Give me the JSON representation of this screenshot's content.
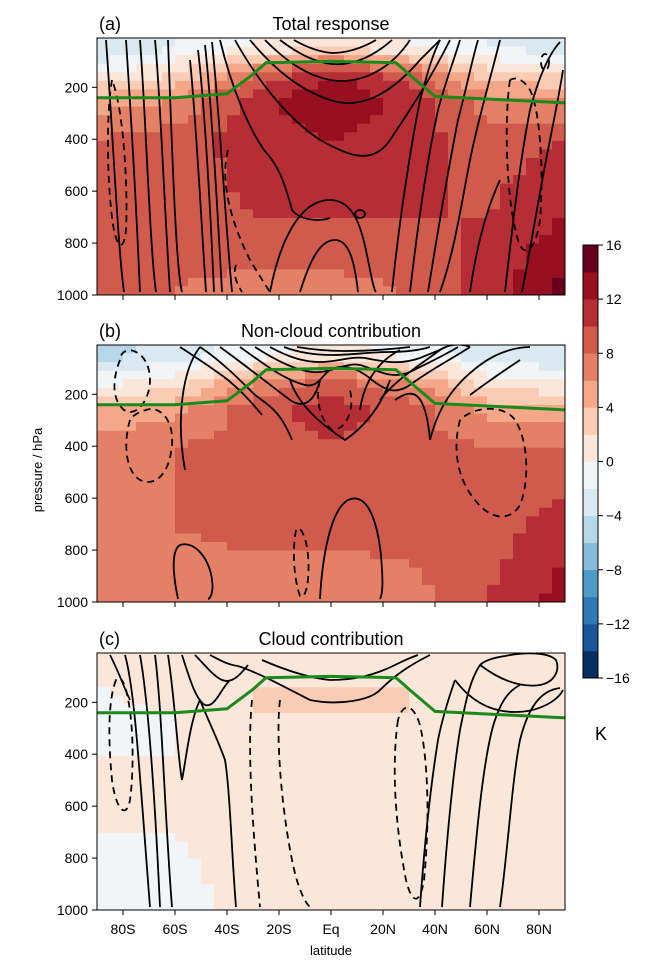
{
  "figure": {
    "ylabel": "pressure / hPa",
    "xlabel": "latitude",
    "colorbar_unit": "K"
  },
  "chart_data": [
    {
      "type": "heatmap",
      "panel_label": "(a)",
      "title": "Total response",
      "xlabel": "latitude",
      "ylabel": "pressure / hPa",
      "x_tick_labels": [
        "80S",
        "60S",
        "40S",
        "20S",
        "Eq",
        "20N",
        "40N",
        "60N",
        "80N"
      ],
      "x_ticks": [
        -80,
        -60,
        -40,
        -20,
        0,
        20,
        40,
        60,
        80
      ],
      "y_tick_labels": [
        "200",
        "400",
        "600",
        "800",
        "1000"
      ],
      "y_ticks": [
        200,
        400,
        600,
        800,
        1000
      ],
      "xlim": [
        -90,
        90
      ],
      "ylim": [
        1000,
        10
      ],
      "tropopause": {
        "lat": [
          -90,
          -60,
          -40,
          -30,
          -25,
          0,
          25,
          30,
          40,
          60,
          90
        ],
        "p": [
          240,
          240,
          225,
          150,
          105,
          100,
          105,
          150,
          235,
          245,
          260
        ],
        "color": "#1a8a1a"
      },
      "field_K": [
        {
          "lat": -90,
          "values": [
            [
              50,
              -4
            ],
            [
              150,
              0
            ],
            [
              250,
              5
            ],
            [
              400,
              8
            ],
            [
              700,
              8
            ],
            [
              1000,
              9
            ]
          ]
        },
        {
          "lat": -60,
          "values": [
            [
              50,
              -2
            ],
            [
              150,
              2
            ],
            [
              250,
              6
            ],
            [
              400,
              9
            ],
            [
              700,
              9
            ],
            [
              1000,
              8
            ]
          ]
        },
        {
          "lat": -30,
          "values": [
            [
              50,
              0
            ],
            [
              150,
              8
            ],
            [
              250,
              11
            ],
            [
              400,
              11
            ],
            [
              700,
              10
            ],
            [
              1000,
              7
            ]
          ]
        },
        {
          "lat": 0,
          "values": [
            [
              50,
              2
            ],
            [
              150,
              12
            ],
            [
              250,
              14
            ],
            [
              400,
              12
            ],
            [
              700,
              10
            ],
            [
              1000,
              7
            ]
          ]
        },
        {
          "lat": 30,
          "values": [
            [
              50,
              0
            ],
            [
              150,
              9
            ],
            [
              250,
              11
            ],
            [
              400,
              11
            ],
            [
              700,
              10
            ],
            [
              1000,
              8
            ]
          ]
        },
        {
          "lat": 60,
          "values": [
            [
              50,
              -2
            ],
            [
              150,
              3
            ],
            [
              250,
              7
            ],
            [
              400,
              9
            ],
            [
              700,
              10
            ],
            [
              1000,
              11
            ]
          ]
        },
        {
          "lat": 90,
          "values": [
            [
              50,
              -3
            ],
            [
              150,
              2
            ],
            [
              250,
              6
            ],
            [
              400,
              10
            ],
            [
              700,
              12
            ],
            [
              1000,
              15
            ]
          ]
        }
      ]
    },
    {
      "type": "heatmap",
      "panel_label": "(b)",
      "title": "Non-cloud contribution",
      "xlabel": "latitude",
      "ylabel": "pressure / hPa",
      "x_tick_labels": [
        "80S",
        "60S",
        "40S",
        "20S",
        "Eq",
        "20N",
        "40N",
        "60N",
        "80N"
      ],
      "x_ticks": [
        -80,
        -60,
        -40,
        -20,
        0,
        20,
        40,
        60,
        80
      ],
      "y_tick_labels": [
        "200",
        "400",
        "600",
        "800",
        "1000"
      ],
      "y_ticks": [
        200,
        400,
        600,
        800,
        1000
      ],
      "xlim": [
        -90,
        90
      ],
      "ylim": [
        1000,
        10
      ],
      "tropopause": {
        "lat": [
          -90,
          -60,
          -40,
          -30,
          -25,
          0,
          25,
          30,
          40,
          60,
          90
        ],
        "p": [
          240,
          240,
          225,
          150,
          105,
          100,
          105,
          150,
          235,
          245,
          260
        ],
        "color": "#1a8a1a"
      },
      "field_K": [
        {
          "lat": -90,
          "values": [
            [
              50,
              -5
            ],
            [
              150,
              -1
            ],
            [
              250,
              4
            ],
            [
              400,
              7
            ],
            [
              700,
              8
            ],
            [
              1000,
              8
            ]
          ]
        },
        {
          "lat": -60,
          "values": [
            [
              50,
              -3
            ],
            [
              150,
              1
            ],
            [
              250,
              5
            ],
            [
              400,
              8
            ],
            [
              700,
              8
            ],
            [
              1000,
              7
            ]
          ]
        },
        {
          "lat": -30,
          "values": [
            [
              50,
              -1
            ],
            [
              150,
              6
            ],
            [
              250,
              9
            ],
            [
              400,
              9
            ],
            [
              700,
              9
            ],
            [
              1000,
              6
            ]
          ]
        },
        {
          "lat": 0,
          "values": [
            [
              50,
              1
            ],
            [
              150,
              9
            ],
            [
              250,
              11
            ],
            [
              400,
              10
            ],
            [
              700,
              9
            ],
            [
              1000,
              6
            ]
          ]
        },
        {
          "lat": 30,
          "values": [
            [
              50,
              -1
            ],
            [
              150,
              6
            ],
            [
              250,
              9
            ],
            [
              400,
              9
            ],
            [
              700,
              9
            ],
            [
              1000,
              7
            ]
          ]
        },
        {
          "lat": 60,
          "values": [
            [
              50,
              -3
            ],
            [
              150,
              1
            ],
            [
              250,
              5
            ],
            [
              400,
              8
            ],
            [
              700,
              9
            ],
            [
              1000,
              10
            ]
          ]
        },
        {
          "lat": 90,
          "values": [
            [
              50,
              -4
            ],
            [
              150,
              0
            ],
            [
              250,
              4
            ],
            [
              400,
              8
            ],
            [
              700,
              11
            ],
            [
              1000,
              13
            ]
          ]
        }
      ]
    },
    {
      "type": "heatmap",
      "panel_label": "(c)",
      "title": "Cloud contribution",
      "xlabel": "latitude",
      "ylabel": "pressure / hPa",
      "x_tick_labels": [
        "80S",
        "60S",
        "40S",
        "20S",
        "Eq",
        "20N",
        "40N",
        "60N",
        "80N"
      ],
      "x_ticks": [
        -80,
        -60,
        -40,
        -20,
        0,
        20,
        40,
        60,
        80
      ],
      "y_tick_labels": [
        "200",
        "400",
        "600",
        "800",
        "1000"
      ],
      "y_ticks": [
        200,
        400,
        600,
        800,
        1000
      ],
      "xlim": [
        -90,
        90
      ],
      "ylim": [
        1000,
        10
      ],
      "tropopause": {
        "lat": [
          -90,
          -60,
          -40,
          -30,
          -25,
          0,
          25,
          30,
          40,
          60,
          90
        ],
        "p": [
          240,
          240,
          225,
          150,
          105,
          100,
          105,
          150,
          235,
          245,
          260
        ],
        "color": "#1a8a1a"
      },
      "field_K": [
        {
          "lat": -90,
          "values": [
            [
              50,
              1
            ],
            [
              150,
              0
            ],
            [
              250,
              -1
            ],
            [
              400,
              0
            ],
            [
              700,
              0
            ],
            [
              1000,
              0
            ]
          ]
        },
        {
          "lat": -60,
          "values": [
            [
              50,
              1
            ],
            [
              150,
              1
            ],
            [
              250,
              0
            ],
            [
              400,
              0
            ],
            [
              700,
              0
            ],
            [
              1000,
              -1
            ]
          ]
        },
        {
          "lat": -30,
          "values": [
            [
              50,
              1
            ],
            [
              150,
              2
            ],
            [
              250,
              2
            ],
            [
              400,
              1
            ],
            [
              700,
              1
            ],
            [
              1000,
              1
            ]
          ]
        },
        {
          "lat": 0,
          "values": [
            [
              50,
              1
            ],
            [
              150,
              2
            ],
            [
              250,
              2
            ],
            [
              400,
              1
            ],
            [
              700,
              1
            ],
            [
              1000,
              1
            ]
          ]
        },
        {
          "lat": 30,
          "values": [
            [
              50,
              1
            ],
            [
              150,
              2
            ],
            [
              250,
              2
            ],
            [
              400,
              1
            ],
            [
              700,
              1
            ],
            [
              1000,
              1
            ]
          ]
        },
        {
          "lat": 60,
          "values": [
            [
              50,
              2
            ],
            [
              150,
              1
            ],
            [
              250,
              1
            ],
            [
              400,
              1
            ],
            [
              700,
              1
            ],
            [
              1000,
              1
            ]
          ]
        },
        {
          "lat": 90,
          "values": [
            [
              50,
              1
            ],
            [
              150,
              1
            ],
            [
              250,
              1
            ],
            [
              400,
              1
            ],
            [
              700,
              1
            ],
            [
              1000,
              2
            ]
          ]
        }
      ]
    }
  ],
  "colorbar": {
    "ticks": [
      "16",
      "12",
      "8",
      "4",
      "0",
      "−4",
      "−8",
      "−12",
      "−16"
    ],
    "range": [
      -16,
      16
    ],
    "step": 2,
    "colors": [
      "#053061",
      "#1a5599",
      "#2f79b5",
      "#4f9bc7",
      "#86bdda",
      "#b6d7e8",
      "#dbeaf2",
      "#f2f5f7",
      "#fbe6da",
      "#fbccb4",
      "#f5a889",
      "#e48066",
      "#d05b4d",
      "#b72d35",
      "#96101f",
      "#67001f"
    ],
    "unit": "K"
  }
}
